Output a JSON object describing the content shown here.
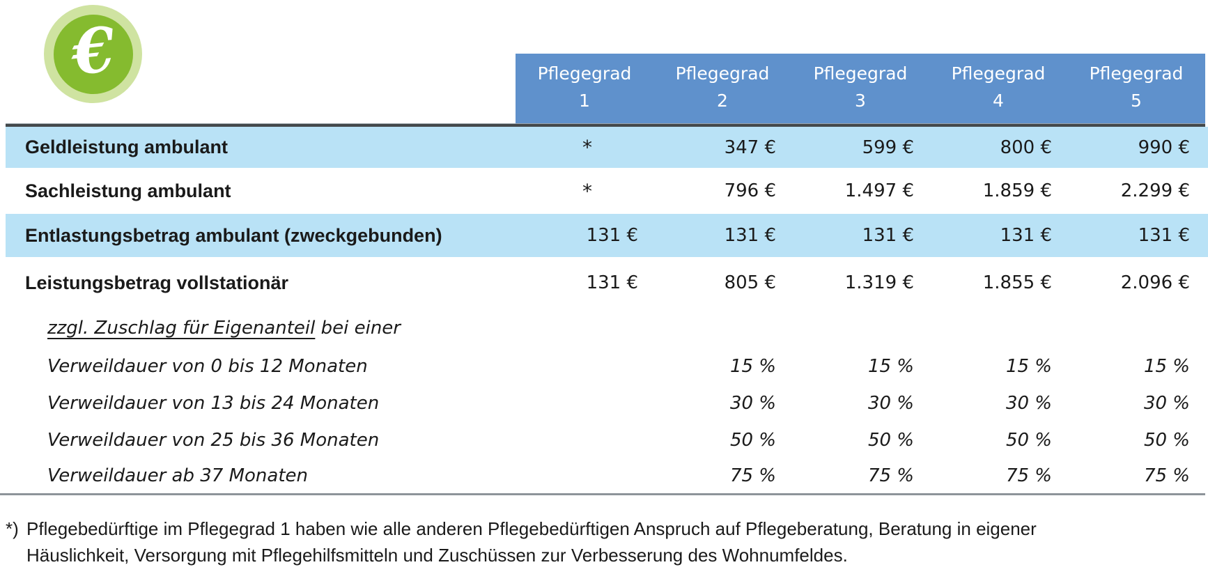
{
  "icon": {
    "symbol": "€",
    "outer_color": "#cfe3a1",
    "inner_color": "#85bb2f"
  },
  "colors": {
    "header_bg": "#5f91cc",
    "header_text": "#ffffff",
    "row_highlight_bg": "#b9e2f6",
    "body_text": "#1a1a1a",
    "top_rule": "#43484b",
    "bottom_rule": "#8d9499"
  },
  "header": {
    "columns": [
      {
        "label": "Pflegegrad",
        "number": "1"
      },
      {
        "label": "Pflegegrad",
        "number": "2"
      },
      {
        "label": "Pflegegrad",
        "number": "3"
      },
      {
        "label": "Pflegegrad",
        "number": "4"
      },
      {
        "label": "Pflegegrad",
        "number": "5"
      }
    ]
  },
  "table": {
    "rows": [
      {
        "label": "Geldleistung ambulant",
        "style": "bold",
        "shaded": true,
        "values": [
          "*",
          "347 €",
          "599 €",
          "800 €",
          "990 €"
        ]
      },
      {
        "label": "Sachleistung ambulant",
        "style": "bold",
        "shaded": false,
        "values": [
          "*",
          "796 €",
          "1.497 €",
          "1.859 €",
          "2.299 €"
        ]
      },
      {
        "label": "Entlastungsbetrag ambulant (zweckgebunden)",
        "style": "bold",
        "shaded": true,
        "values": [
          "131 €",
          "131 €",
          "131 €",
          "131 €",
          "131 €"
        ]
      },
      {
        "label": "Leistungsbetrag vollstationär",
        "style": "bold",
        "shaded": false,
        "values": [
          "131 €",
          "805 €",
          "1.319 €",
          "1.855 €",
          "2.096 €"
        ]
      },
      {
        "label_underlined": "zzgl. Zuschlag für Eigenanteil",
        "label_rest": " bei einer",
        "style": "italic",
        "shaded": false,
        "values": [
          "",
          "",
          "",
          "",
          ""
        ]
      },
      {
        "label": "Verweildauer von 0 bis 12 Monaten",
        "style": "italic",
        "shaded": false,
        "values": [
          "",
          "15 %",
          "15 %",
          "15 %",
          "15 %"
        ]
      },
      {
        "label": "Verweildauer von 13 bis 24 Monaten",
        "style": "italic",
        "shaded": false,
        "values": [
          "",
          "30 %",
          "30 %",
          "30 %",
          "30 %"
        ]
      },
      {
        "label": "Verweildauer von 25 bis 36 Monaten",
        "style": "italic",
        "shaded": false,
        "values": [
          "",
          "50 %",
          "50 %",
          "50 %",
          "50 %"
        ]
      },
      {
        "label": "Verweildauer ab 37 Monaten",
        "style": "italic",
        "shaded": false,
        "values": [
          "",
          "75 %",
          "75 %",
          "75 %",
          "75 %"
        ]
      }
    ]
  },
  "footnote": {
    "marker": "*)",
    "line1": "Pflegebedürftige im Pflegegrad 1 haben wie alle anderen Pflegebedürftigen Anspruch auf Pflegeberatung, Beratung in eigener",
    "line2": "Häuslichkeit, Versorgung mit Pflegehilfsmitteln und Zuschüssen zur Verbesserung des Wohnumfeldes."
  }
}
